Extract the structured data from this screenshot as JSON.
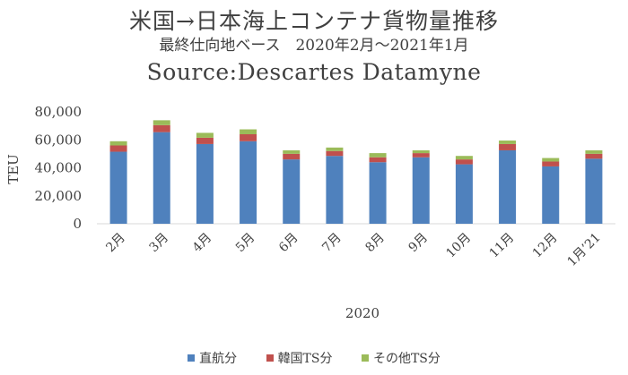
{
  "chart_data": {
    "type": "bar",
    "stacked": true,
    "title": "米国→日本海上コンテナ貨物量推移",
    "subtitle": "最終仕向地ベース　2020年2月～2021年1月",
    "source": "Source:Descartes Datamyne",
    "xlabel": "2020",
    "ylabel": "TEU",
    "ylim": [
      0,
      80000
    ],
    "yticks": [
      "0",
      "20,000",
      "40,000",
      "60,000",
      "80,000"
    ],
    "grid": false,
    "legend_position": "bottom",
    "categories": [
      "2月",
      "3月",
      "4月",
      "5月",
      "6月",
      "7月",
      "8月",
      "9月",
      "10月",
      "11月",
      "12月",
      "1月’21"
    ],
    "series": [
      {
        "name": "直航分",
        "color": "#4f81bd",
        "values": [
          51500,
          65500,
          57000,
          59000,
          46000,
          48500,
          44000,
          47500,
          42500,
          52500,
          41000,
          46500
        ]
      },
      {
        "name": "韓国TS分",
        "color": "#c0504d",
        "values": [
          4500,
          5000,
          4500,
          5000,
          4000,
          3500,
          3500,
          3000,
          3500,
          4500,
          3500,
          3500
        ]
      },
      {
        "name": "その他TS分",
        "color": "#9bbb59",
        "values": [
          3000,
          3500,
          3500,
          3500,
          2500,
          2500,
          3000,
          2000,
          2500,
          2500,
          2500,
          2500
        ]
      }
    ]
  }
}
